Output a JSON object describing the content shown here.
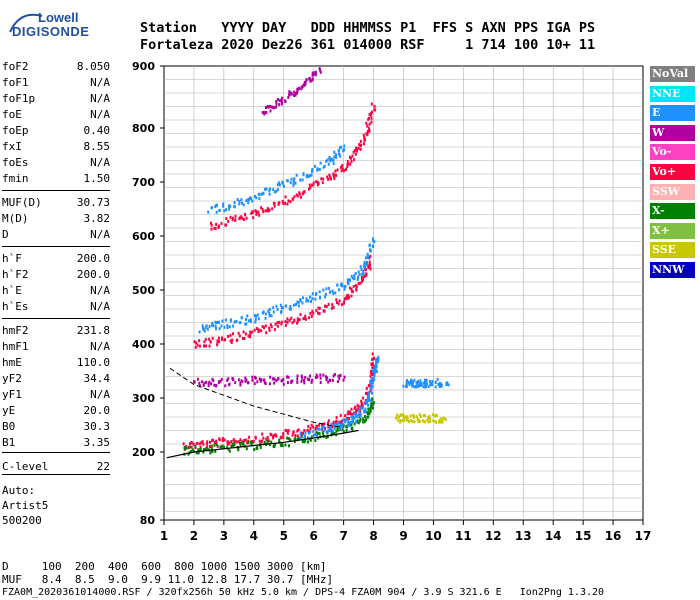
{
  "logo": {
    "line1": "Lowell",
    "line2": "DIGISONDE"
  },
  "header": {
    "labels": "Station   YYYY DAY   DDD HHMMSS P1  FFS S AXN PPS IGA PS",
    "values": "Fortaleza 2020 Dez26 361 014000 RSF     1 714 100 10+ 11"
  },
  "parameters": [
    {
      "name": "foF2",
      "value": "8.050"
    },
    {
      "name": "foF1",
      "value": "N/A"
    },
    {
      "name": "foF1p",
      "value": "N/A"
    },
    {
      "name": "foE",
      "value": "N/A"
    },
    {
      "name": "foEp",
      "value": "0.40"
    },
    {
      "name": "fxI",
      "value": "8.55"
    },
    {
      "name": "foEs",
      "value": "N/A"
    },
    {
      "name": "fmin",
      "value": "1.50"
    },
    {
      "name": "MUF(D)",
      "value": "30.73"
    },
    {
      "name": "M(D)",
      "value": "3.82"
    },
    {
      "name": "D",
      "value": "N/A"
    },
    {
      "name": "h`F",
      "value": "200.0"
    },
    {
      "name": "h`F2",
      "value": "200.0"
    },
    {
      "name": "h`E",
      "value": "N/A"
    },
    {
      "name": "h`Es",
      "value": "N/A"
    },
    {
      "name": "hmF2",
      "value": "231.8"
    },
    {
      "name": "hmF1",
      "value": "N/A"
    },
    {
      "name": "hmE",
      "value": "110.0"
    },
    {
      "name": "yF2",
      "value": "34.4"
    },
    {
      "name": "yF1",
      "value": "N/A"
    },
    {
      "name": "yE",
      "value": "20.0"
    },
    {
      "name": "B0",
      "value": "30.3"
    },
    {
      "name": "B1",
      "value": "3.35"
    },
    {
      "name": "C-level",
      "value": "22"
    }
  ],
  "autoscaling": {
    "line1": "Auto:",
    "line2": "Artist5",
    "line3": "500200"
  },
  "legend": [
    {
      "label": "NoVal",
      "color": "#808080"
    },
    {
      "label": "NNE",
      "color": "#00e5ff"
    },
    {
      "label": "E",
      "color": "#1e90ff"
    },
    {
      "label": "W",
      "color": "#b000a0"
    },
    {
      "label": "Vo-",
      "color": "#ff40c0"
    },
    {
      "label": "Vo+",
      "color": "#ff0040"
    },
    {
      "label": "SSW",
      "color": "#ffb0b0"
    },
    {
      "label": "X-",
      "color": "#008000"
    },
    {
      "label": "X+",
      "color": "#80c040"
    },
    {
      "label": "SSE",
      "color": "#c8c800"
    },
    {
      "label": "NNW",
      "color": "#0000c0"
    }
  ],
  "footer": {
    "d_row": "D     100  200  400  600  800 1000 1500 3000 [km]",
    "muf_row": "MUF   8.4  8.5  9.0  9.9 11.0 12.8 17.7 30.7 [MHz]",
    "file_row": "FZA0M_2020361014000.RSF / 320fx256h 50 kHz 5.0 km / DPS-4 FZA0M 904 / 3.9 S 321.6 E   Ion2Png 1.3.20"
  },
  "chart_data": {
    "type": "scatter",
    "xlim": [
      1,
      17
    ],
    "ylim": [
      80,
      900
    ],
    "x_ticks": [
      "1",
      "2",
      "3",
      "4",
      "5",
      "6",
      "7",
      "8",
      "9",
      "10",
      "11",
      "12",
      "13",
      "14",
      "15",
      "16",
      "17"
    ],
    "y_ticks": [
      "80",
      "200",
      "300",
      "400",
      "500",
      "600",
      "700",
      "800",
      "900"
    ],
    "y_tick_values": [
      80,
      200,
      300,
      400,
      500,
      600,
      700,
      800,
      900
    ],
    "grid": true,
    "legend_position": "right",
    "traces": [
      {
        "color": "#ff0040",
        "x": [
          1.6,
          2.5,
          3.5,
          4.5,
          5.5,
          6.5,
          7.2,
          7.6,
          7.9,
          8.0
        ],
        "y": [
          215,
          218,
          224,
          230,
          240,
          255,
          272,
          290,
          330,
          380
        ]
      },
      {
        "color": "#008000",
        "x": [
          1.6,
          2.5,
          3.5,
          4.5,
          5.5,
          6.5,
          7.2,
          7.8,
          8.0
        ],
        "y": [
          205,
          208,
          212,
          217,
          225,
          238,
          250,
          270,
          300
        ]
      },
      {
        "color": "#1e90ff",
        "x": [
          5.5,
          6.5,
          7.0,
          7.5,
          7.8,
          8.0,
          8.1
        ],
        "y": [
          230,
          245,
          255,
          270,
          300,
          350,
          380
        ]
      },
      {
        "color": "#b000a0",
        "x": [
          2.0,
          3.0,
          4.0,
          5.0,
          6.0,
          7.0
        ],
        "y": [
          330,
          332,
          335,
          335,
          338,
          340
        ]
      },
      {
        "color": "#ff0040",
        "x": [
          2.0,
          3.0,
          4.0,
          5.0,
          6.0,
          7.0,
          7.6,
          7.9
        ],
        "y": [
          400,
          410,
          425,
          440,
          460,
          485,
          520,
          560
        ]
      },
      {
        "color": "#1e90ff",
        "x": [
          2.2,
          3.0,
          4.0,
          5.0,
          6.0,
          7.0,
          7.6,
          8.0
        ],
        "y": [
          430,
          440,
          450,
          470,
          490,
          510,
          540,
          600
        ]
      },
      {
        "color": "#ff0040",
        "x": [
          2.5,
          3.5,
          4.5,
          5.5,
          6.5,
          7.2,
          7.7,
          8.0
        ],
        "y": [
          620,
          635,
          655,
          680,
          710,
          740,
          790,
          840
        ]
      },
      {
        "color": "#1e90ff",
        "x": [
          2.5,
          3.5,
          4.5,
          5.5,
          6.5,
          7.0
        ],
        "y": [
          650,
          665,
          685,
          710,
          740,
          770
        ]
      },
      {
        "color": "#b000a0",
        "x": [
          4.3,
          5.0,
          5.6,
          6.2
        ],
        "y": [
          830,
          850,
          870,
          895
        ]
      },
      {
        "color": "#1e90ff",
        "x": [
          9.0,
          9.4,
          9.8,
          10.5
        ],
        "y": [
          330,
          330,
          330,
          330
        ]
      },
      {
        "color": "#c8c800",
        "x": [
          8.7,
          9.2,
          9.8,
          10.4
        ],
        "y": [
          265,
          265,
          265,
          265
        ]
      }
    ],
    "curve_lower": {
      "x": [
        1.1,
        2,
        3,
        4,
        5,
        6,
        7,
        7.5
      ],
      "y": [
        190,
        200,
        206,
        212,
        218,
        226,
        235,
        240
      ]
    },
    "curve_dashed": {
      "x": [
        1.2,
        2,
        3,
        4,
        5,
        6,
        7
      ],
      "y": [
        355,
        325,
        305,
        285,
        270,
        255,
        245
      ]
    }
  }
}
